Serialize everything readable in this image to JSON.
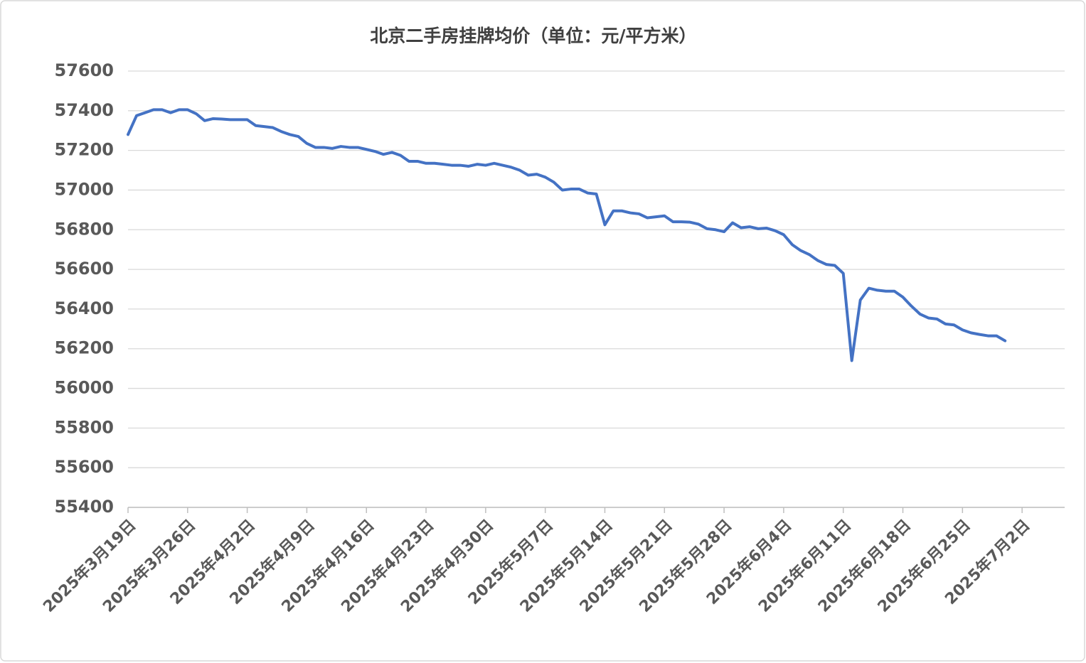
{
  "chart_data": {
    "type": "line",
    "title": "北京二手房挂牌均价（单位：元/平方米）",
    "x": [
      "2025-03-19",
      "2025-03-20",
      "2025-03-21",
      "2025-03-22",
      "2025-03-23",
      "2025-03-24",
      "2025-03-25",
      "2025-03-26",
      "2025-03-27",
      "2025-03-28",
      "2025-03-29",
      "2025-03-30",
      "2025-03-31",
      "2025-04-01",
      "2025-04-02",
      "2025-04-03",
      "2025-04-04",
      "2025-04-05",
      "2025-04-06",
      "2025-04-07",
      "2025-04-08",
      "2025-04-09",
      "2025-04-10",
      "2025-04-11",
      "2025-04-12",
      "2025-04-13",
      "2025-04-14",
      "2025-04-15",
      "2025-04-16",
      "2025-04-17",
      "2025-04-18",
      "2025-04-19",
      "2025-04-20",
      "2025-04-21",
      "2025-04-22",
      "2025-04-23",
      "2025-04-24",
      "2025-04-25",
      "2025-04-26",
      "2025-04-27",
      "2025-04-28",
      "2025-04-29",
      "2025-04-30",
      "2025-05-01",
      "2025-05-02",
      "2025-05-03",
      "2025-05-04",
      "2025-05-05",
      "2025-05-06",
      "2025-05-07",
      "2025-05-08",
      "2025-05-09",
      "2025-05-10",
      "2025-05-11",
      "2025-05-12",
      "2025-05-13",
      "2025-05-14",
      "2025-05-15",
      "2025-05-16",
      "2025-05-17",
      "2025-05-18",
      "2025-05-19",
      "2025-05-20",
      "2025-05-21",
      "2025-05-22",
      "2025-05-23",
      "2025-05-24",
      "2025-05-25",
      "2025-05-26",
      "2025-05-27",
      "2025-05-28",
      "2025-05-29",
      "2025-05-30",
      "2025-05-31",
      "2025-06-01",
      "2025-06-02",
      "2025-06-03",
      "2025-06-04",
      "2025-06-05",
      "2025-06-06",
      "2025-06-07",
      "2025-06-08",
      "2025-06-09",
      "2025-06-10",
      "2025-06-11",
      "2025-06-12",
      "2025-06-13",
      "2025-06-14",
      "2025-06-15",
      "2025-06-16",
      "2025-06-17",
      "2025-06-18",
      "2025-06-19",
      "2025-06-20",
      "2025-06-21",
      "2025-06-22",
      "2025-06-23",
      "2025-06-24",
      "2025-06-25",
      "2025-06-26",
      "2025-06-27",
      "2025-06-28",
      "2025-06-29",
      "2025-06-30"
    ],
    "series": [
      {
        "color": "#4472c4",
        "values": [
          57280,
          57375,
          57390,
          57405,
          57405,
          57390,
          57405,
          57405,
          57385,
          57350,
          57360,
          57358,
          57355,
          57355,
          57355,
          57325,
          57320,
          57315,
          57295,
          57280,
          57270,
          57235,
          57215,
          57215,
          57210,
          57220,
          57215,
          57215,
          57205,
          57195,
          57180,
          57190,
          57175,
          57145,
          57145,
          57135,
          57135,
          57130,
          57125,
          57125,
          57120,
          57130,
          57125,
          57135,
          57125,
          57115,
          57100,
          57075,
          57080,
          57065,
          57040,
          57000,
          57005,
          57005,
          56985,
          56980,
          56825,
          56895,
          56895,
          56885,
          56880,
          56860,
          56865,
          56870,
          56840,
          56840,
          56838,
          56828,
          56805,
          56800,
          56790,
          56835,
          56810,
          56815,
          56805,
          56808,
          56795,
          56775,
          56725,
          56695,
          56675,
          56645,
          56625,
          56620,
          56580,
          56140,
          56445,
          56505,
          56495,
          56490,
          56490,
          56460,
          56415,
          56375,
          56355,
          56350,
          56325,
          56320,
          56295,
          56280,
          56272,
          56265,
          56265,
          56240
        ]
      }
    ],
    "xlim": [
      "2025-03-19",
      "2025-07-07"
    ],
    "xticks": [
      {
        "value": "2025-03-19",
        "label": "2025年3月19日"
      },
      {
        "value": "2025-03-26",
        "label": "2025年3月26日"
      },
      {
        "value": "2025-04-02",
        "label": "2025年4月2日"
      },
      {
        "value": "2025-04-09",
        "label": "2025年4月9日"
      },
      {
        "value": "2025-04-16",
        "label": "2025年4月16日"
      },
      {
        "value": "2025-04-23",
        "label": "2025年4月23日"
      },
      {
        "value": "2025-04-30",
        "label": "2025年4月30日"
      },
      {
        "value": "2025-05-07",
        "label": "2025年5月7日"
      },
      {
        "value": "2025-05-14",
        "label": "2025年5月14日"
      },
      {
        "value": "2025-05-21",
        "label": "2025年5月21日"
      },
      {
        "value": "2025-05-28",
        "label": "2025年5月28日"
      },
      {
        "value": "2025-06-04",
        "label": "2025年6月4日"
      },
      {
        "value": "2025-06-11",
        "label": "2025年6月11日"
      },
      {
        "value": "2025-06-18",
        "label": "2025年6月18日"
      },
      {
        "value": "2025-06-25",
        "label": "2025年6月25日"
      },
      {
        "value": "2025-07-02",
        "label": "2025年7月2日"
      }
    ],
    "ylim": [
      55400,
      57600
    ],
    "yticks": [
      55400,
      55600,
      55800,
      56000,
      56200,
      56400,
      56600,
      56800,
      57000,
      57200,
      57400,
      57600
    ],
    "grid": true
  }
}
